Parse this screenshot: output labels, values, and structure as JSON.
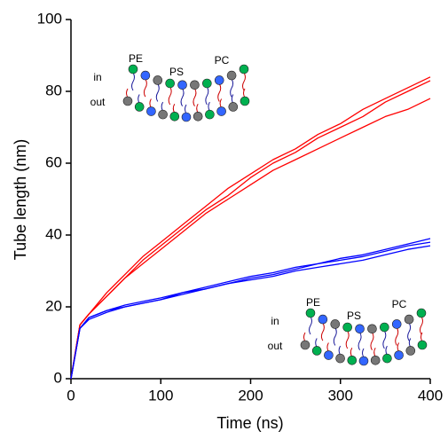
{
  "chart_data": {
    "type": "line",
    "xlabel": "Time (ns)",
    "ylabel": "Tube length (nm)",
    "x": [
      0,
      10,
      20,
      40,
      60,
      80,
      100,
      125,
      150,
      175,
      200,
      225,
      250,
      275,
      300,
      325,
      350,
      375,
      400
    ],
    "series": [
      {
        "color": "#ff0000",
        "values": [
          0,
          15,
          18,
          24,
          29,
          34,
          38,
          43,
          48,
          53,
          57,
          61,
          64,
          68,
          71,
          75,
          78,
          81,
          84
        ]
      },
      {
        "color": "#ff0000",
        "values": [
          0,
          15,
          18,
          23,
          28,
          33,
          37,
          42,
          47,
          51,
          56,
          60,
          63,
          67,
          70,
          73,
          77,
          80,
          83
        ]
      },
      {
        "color": "#ff0000",
        "values": [
          0,
          15,
          18,
          23,
          28,
          32,
          36,
          41,
          46,
          50,
          54,
          58,
          61,
          64,
          67,
          70,
          73,
          75,
          78
        ]
      },
      {
        "color": "#0000ff",
        "values": [
          0,
          14,
          17,
          19,
          20.5,
          21.5,
          22.5,
          24,
          25.5,
          27,
          28.5,
          29.5,
          31,
          32,
          33.5,
          34.5,
          36,
          37.5,
          39
        ]
      },
      {
        "color": "#0000ff",
        "values": [
          0,
          14,
          17,
          19,
          20,
          21,
          22,
          24,
          25,
          26.5,
          28,
          29,
          30.5,
          32,
          33,
          34,
          35.5,
          37,
          38
        ]
      },
      {
        "color": "#0000ff",
        "values": [
          0,
          14,
          16.5,
          18.5,
          20,
          21,
          22,
          23.5,
          25,
          26.5,
          27.5,
          28.5,
          30,
          31,
          32,
          33,
          34.5,
          36,
          37
        ]
      }
    ],
    "xlim": [
      0,
      400
    ],
    "xticks": [
      0,
      100,
      200,
      300,
      400
    ],
    "ylim": [
      0,
      100
    ],
    "yticks": [
      0,
      20,
      40,
      60,
      80,
      100
    ],
    "insets": [
      {
        "head_labels": [
          "PE",
          "PS",
          "PC"
        ],
        "in": "in",
        "out": "out"
      },
      {
        "head_labels": [
          "PE",
          "PS",
          "PC"
        ],
        "in": "in",
        "out": "out"
      }
    ]
  }
}
